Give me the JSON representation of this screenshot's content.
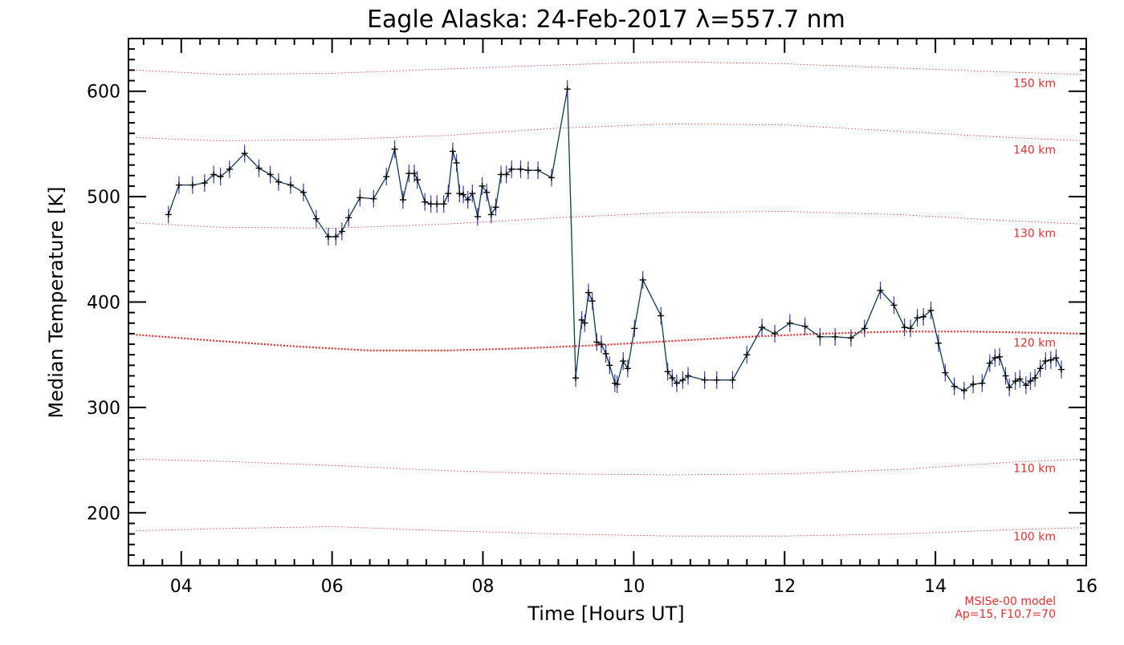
{
  "chart_data": {
    "type": "line",
    "title": "Eagle Alaska: 24-Feb-2017 λ=557.7 nm",
    "xlabel": "Time [Hours UT]",
    "ylabel": "Median Temperature [K]",
    "xlim": [
      3.3,
      16.0
    ],
    "ylim": [
      150,
      650
    ],
    "xticks": [
      {
        "v": 4,
        "label": "04"
      },
      {
        "v": 6,
        "label": "06"
      },
      {
        "v": 8,
        "label": "08"
      },
      {
        "v": 10,
        "label": "10"
      },
      {
        "v": 12,
        "label": "12"
      },
      {
        "v": 14,
        "label": "14"
      },
      {
        "v": 16,
        "label": "16"
      }
    ],
    "yticks": [
      {
        "v": 200,
        "label": "200"
      },
      {
        "v": 300,
        "label": "300"
      },
      {
        "v": 400,
        "label": "400"
      },
      {
        "v": 500,
        "label": "500"
      },
      {
        "v": 600,
        "label": "600"
      }
    ],
    "series": [
      {
        "color": "#0d3a52",
        "marker": "+",
        "points": [
          [
            3.83,
            483
          ],
          [
            3.97,
            511
          ],
          [
            4.15,
            511
          ],
          [
            4.31,
            513
          ],
          [
            4.43,
            521
          ],
          [
            4.52,
            519
          ],
          [
            4.64,
            526
          ],
          [
            4.84,
            541
          ],
          [
            5.03,
            527
          ],
          [
            5.18,
            521
          ],
          [
            5.29,
            514
          ],
          [
            5.45,
            511
          ],
          [
            5.62,
            504
          ],
          [
            5.79,
            479
          ],
          [
            5.95,
            462
          ],
          [
            6.05,
            462
          ],
          [
            6.13,
            467
          ],
          [
            6.22,
            480
          ],
          [
            6.37,
            499
          ],
          [
            6.55,
            498
          ],
          [
            6.72,
            519
          ],
          [
            6.83,
            545
          ],
          [
            6.94,
            497
          ],
          [
            7.02,
            522
          ],
          [
            7.09,
            522
          ],
          [
            7.13,
            516
          ],
          [
            7.23,
            495
          ],
          [
            7.31,
            493
          ],
          [
            7.39,
            493
          ],
          [
            7.48,
            493
          ],
          [
            7.54,
            503
          ],
          [
            7.6,
            543
          ],
          [
            7.65,
            532
          ],
          [
            7.69,
            503
          ],
          [
            7.74,
            502
          ],
          [
            7.8,
            497
          ],
          [
            7.86,
            503
          ],
          [
            7.93,
            481
          ],
          [
            7.99,
            510
          ],
          [
            8.05,
            504
          ],
          [
            8.11,
            483
          ],
          [
            8.17,
            490
          ],
          [
            8.24,
            521
          ],
          [
            8.31,
            521
          ],
          [
            8.38,
            526
          ],
          [
            8.5,
            526
          ],
          [
            8.6,
            525
          ],
          [
            8.73,
            525
          ],
          [
            8.91,
            518
          ],
          [
            9.12,
            602
          ],
          [
            9.23,
            328
          ],
          [
            9.31,
            383
          ],
          [
            9.35,
            380
          ],
          [
            9.4,
            409
          ],
          [
            9.45,
            401
          ],
          [
            9.51,
            362
          ],
          [
            9.57,
            360
          ],
          [
            9.63,
            351
          ],
          [
            9.68,
            340
          ],
          [
            9.75,
            323
          ],
          [
            9.78,
            322
          ],
          [
            9.86,
            344
          ],
          [
            9.92,
            337
          ],
          [
            10.01,
            375
          ],
          [
            10.12,
            421
          ],
          [
            10.36,
            387
          ],
          [
            10.45,
            334
          ],
          [
            10.51,
            328
          ],
          [
            10.57,
            323
          ],
          [
            10.65,
            326
          ],
          [
            10.72,
            330
          ],
          [
            10.94,
            326
          ],
          [
            11.1,
            326
          ],
          [
            11.31,
            326
          ],
          [
            11.5,
            350
          ],
          [
            11.7,
            376
          ],
          [
            11.87,
            370
          ],
          [
            12.07,
            380
          ],
          [
            12.27,
            377
          ],
          [
            12.47,
            367
          ],
          [
            12.67,
            367
          ],
          [
            12.88,
            366
          ],
          [
            13.06,
            375
          ],
          [
            13.27,
            411
          ],
          [
            13.45,
            397
          ],
          [
            13.59,
            376
          ],
          [
            13.67,
            375
          ],
          [
            13.76,
            385
          ],
          [
            13.84,
            386
          ],
          [
            13.94,
            392
          ],
          [
            14.04,
            361
          ],
          [
            14.13,
            333
          ],
          [
            14.25,
            320
          ],
          [
            14.38,
            316
          ],
          [
            14.5,
            322
          ],
          [
            14.62,
            323
          ],
          [
            14.72,
            342
          ],
          [
            14.79,
            347
          ],
          [
            14.85,
            348
          ],
          [
            14.93,
            330
          ],
          [
            14.98,
            319
          ],
          [
            15.06,
            325
          ],
          [
            15.12,
            327
          ],
          [
            15.2,
            321
          ],
          [
            15.26,
            325
          ],
          [
            15.32,
            328
          ],
          [
            15.39,
            337
          ],
          [
            15.46,
            344
          ],
          [
            15.53,
            345
          ],
          [
            15.6,
            347
          ],
          [
            15.67,
            336
          ]
        ]
      }
    ],
    "model_curves": [
      {
        "label": "150 km",
        "color": "#e03030",
        "width": 0.8,
        "points": [
          [
            3.4,
            620
          ],
          [
            4.5,
            616
          ],
          [
            6.0,
            617
          ],
          [
            7.5,
            621
          ],
          [
            9.0,
            625
          ],
          [
            10.5,
            628
          ],
          [
            12.0,
            626
          ],
          [
            13.5,
            622
          ],
          [
            15.0,
            618
          ],
          [
            15.95,
            616
          ]
        ]
      },
      {
        "label": "140 km",
        "color": "#e03030",
        "width": 0.8,
        "points": [
          [
            3.4,
            556
          ],
          [
            4.5,
            553
          ],
          [
            6.0,
            554
          ],
          [
            7.5,
            558
          ],
          [
            9.0,
            565
          ],
          [
            10.5,
            569
          ],
          [
            12.0,
            568
          ],
          [
            13.5,
            562
          ],
          [
            15.0,
            556
          ],
          [
            15.95,
            553
          ]
        ]
      },
      {
        "label": "130 km",
        "color": "#e03030",
        "width": 0.8,
        "points": [
          [
            3.4,
            475
          ],
          [
            4.5,
            471
          ],
          [
            6.0,
            470
          ],
          [
            7.5,
            474
          ],
          [
            9.0,
            480
          ],
          [
            10.5,
            485
          ],
          [
            12.0,
            486
          ],
          [
            13.5,
            483
          ],
          [
            15.0,
            477
          ],
          [
            15.95,
            474
          ]
        ]
      },
      {
        "label": "120 km",
        "color": "#e03030",
        "width": 2.2,
        "points": [
          [
            3.4,
            369
          ],
          [
            4.5,
            363
          ],
          [
            5.5,
            358
          ],
          [
            6.5,
            354
          ],
          [
            7.5,
            354
          ],
          [
            8.5,
            356
          ],
          [
            9.5,
            359
          ],
          [
            10.5,
            363
          ],
          [
            11.5,
            367
          ],
          [
            12.5,
            370
          ],
          [
            13.5,
            372
          ],
          [
            14.5,
            372
          ],
          [
            15.95,
            370
          ]
        ]
      },
      {
        "label": "110 km",
        "color": "#e03030",
        "width": 0.8,
        "points": [
          [
            3.4,
            251
          ],
          [
            4.5,
            249
          ],
          [
            6.0,
            245
          ],
          [
            7.5,
            240
          ],
          [
            9.0,
            237
          ],
          [
            10.5,
            236
          ],
          [
            12.0,
            237
          ],
          [
            13.5,
            241
          ],
          [
            15.0,
            248
          ],
          [
            15.95,
            251
          ]
        ]
      },
      {
        "label": "100 km",
        "color": "#e03030",
        "width": 0.8,
        "points": [
          [
            3.4,
            183
          ],
          [
            4.5,
            185
          ],
          [
            6.0,
            187
          ],
          [
            7.5,
            183
          ],
          [
            9.0,
            180
          ],
          [
            10.5,
            178
          ],
          [
            12.0,
            178
          ],
          [
            13.5,
            180
          ],
          [
            15.0,
            184
          ],
          [
            15.95,
            186
          ]
        ]
      }
    ],
    "footnote": [
      "MSISe-00 model",
      "Ap=15, F10.7=70"
    ]
  }
}
